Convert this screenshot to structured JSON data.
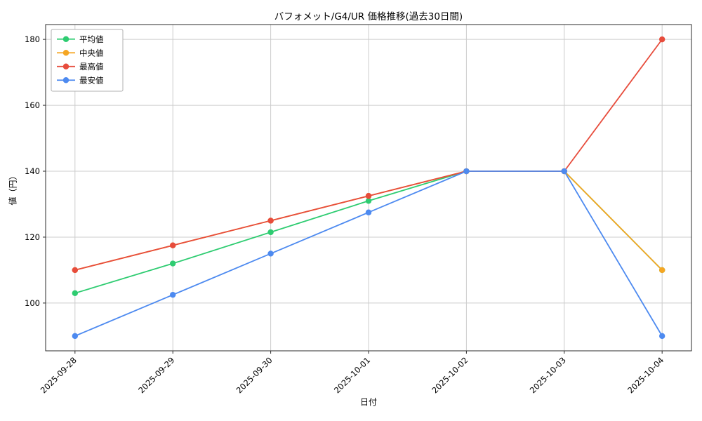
{
  "chart_data": {
    "type": "line",
    "title": "バフォメット/G4/UR 価格推移(過去30日間)",
    "xlabel": "日付",
    "ylabel": "値（円）",
    "categories": [
      "2025-09-28",
      "2025-09-29",
      "2025-09-30",
      "2025-10-01",
      "2025-10-02",
      "2025-10-03",
      "2025-10-04"
    ],
    "series": [
      {
        "name": "平均値",
        "color": "#2ecc71",
        "values": [
          103,
          112,
          121.5,
          131,
          140,
          140,
          110
        ]
      },
      {
        "name": "中央値",
        "color": "#f5a623",
        "values": [
          110,
          117.5,
          125,
          132.5,
          140,
          140,
          110
        ]
      },
      {
        "name": "最高値",
        "color": "#e74c3c",
        "values": [
          110,
          117.5,
          125,
          132.5,
          140,
          140,
          180
        ]
      },
      {
        "name": "最安値",
        "color": "#4d8af0",
        "values": [
          90,
          102.5,
          115,
          127.5,
          140,
          140,
          90
        ]
      }
    ],
    "yticks": [
      100,
      120,
      140,
      160,
      180
    ],
    "ylim": [
      85.5,
      184.5
    ],
    "grid": true,
    "legend_position": "upper left",
    "colors": {
      "grid": "#cccccc",
      "spine": "#2b2b2b",
      "tick_text": "#000000",
      "legend_border": "#b0b0b0",
      "legend_bg": "#ffffff"
    }
  }
}
